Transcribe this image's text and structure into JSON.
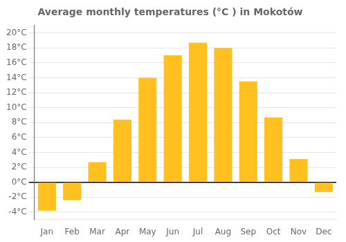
{
  "chart_data": {
    "type": "bar",
    "title": "Average monthly temperatures (°C ) in Mokotów",
    "categories": [
      "Jan",
      "Feb",
      "Mar",
      "Apr",
      "May",
      "Jun",
      "Jul",
      "Aug",
      "Sep",
      "Oct",
      "Nov",
      "Dec"
    ],
    "values": [
      -3.8,
      -2.4,
      2.7,
      8.4,
      14.0,
      17.0,
      18.7,
      18.0,
      13.5,
      8.7,
      3.1,
      -1.3
    ],
    "color": "#FFC020",
    "ylim": [
      -5,
      21
    ],
    "yticks": [
      {
        "value": -4,
        "label": "-4°C"
      },
      {
        "value": -2,
        "label": "-2°C"
      },
      {
        "value": 0,
        "label": "0°C"
      },
      {
        "value": 2,
        "label": "2°C"
      },
      {
        "value": 4,
        "label": "4°C"
      },
      {
        "value": 6,
        "label": "6°C"
      },
      {
        "value": 8,
        "label": "8°C"
      },
      {
        "value": 10,
        "label": "10°C"
      },
      {
        "value": 12,
        "label": "12°C"
      },
      {
        "value": 14,
        "label": "14°C"
      },
      {
        "value": 16,
        "label": "16°C"
      },
      {
        "value": 18,
        "label": "18°C"
      },
      {
        "value": 20,
        "label": "20°C"
      }
    ],
    "grid": true
  }
}
